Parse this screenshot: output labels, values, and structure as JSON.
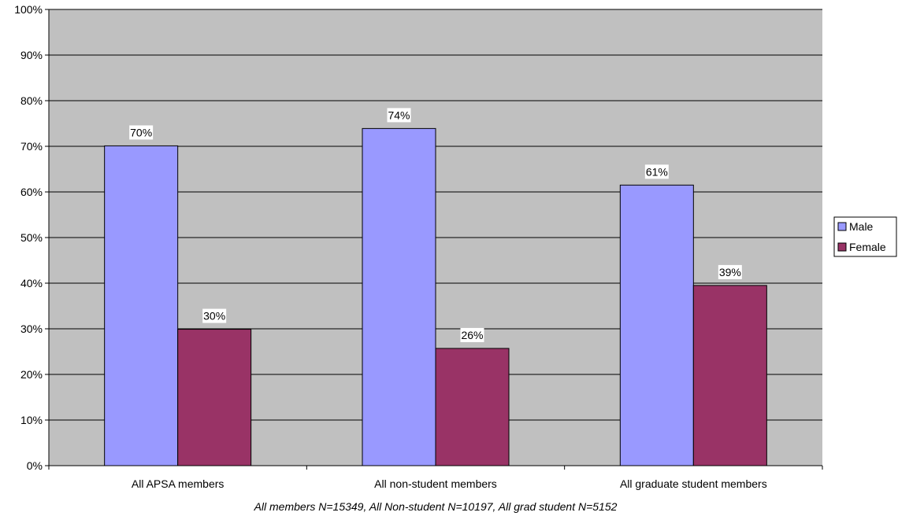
{
  "chart_data": {
    "type": "bar",
    "categories": [
      "All APSA members",
      "All non-student members",
      "All graduate student members"
    ],
    "series": [
      {
        "name": "Male",
        "values": [
          70,
          74,
          61
        ],
        "exact": [
          70.1,
          73.9,
          61.5
        ],
        "color": "#9999ff"
      },
      {
        "name": "Female",
        "values": [
          30,
          26,
          39
        ],
        "exact": [
          29.9,
          25.7,
          39.5
        ],
        "color": "#993366"
      }
    ],
    "ylim": [
      0,
      100
    ],
    "yticks": [
      "0%",
      "10%",
      "20%",
      "30%",
      "40%",
      "50%",
      "60%",
      "70%",
      "80%",
      "90%",
      "100%"
    ],
    "xlabel": "All members N=15349, All Non-student N=10197, All grad student N=5152",
    "ylabel": "",
    "grid": true,
    "legend": "right",
    "plot_background": "#c0c0c0"
  }
}
